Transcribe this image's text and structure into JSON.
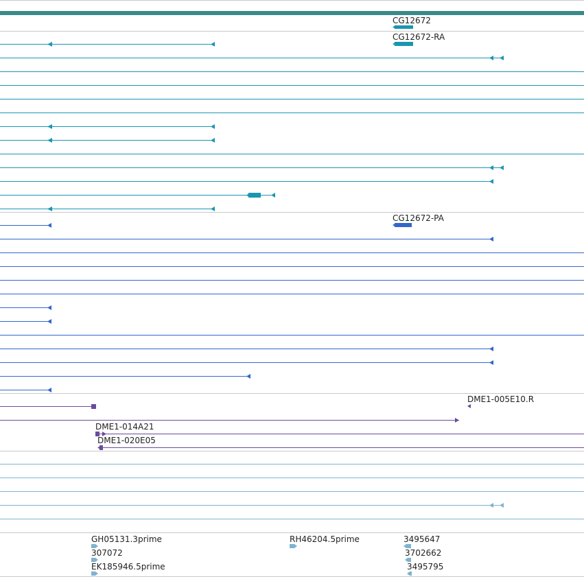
{
  "colors": {
    "separator": "#c8c8c8",
    "gene": "#3a8a8a",
    "transcript": "#1a96b2",
    "protein": "#3366cc",
    "clone": "#6a4c9c",
    "est": "#7fb3cf"
  },
  "genes": {
    "gene_name": "CG12672",
    "transcript_name": "CG12672-RA",
    "protein_name": "CG12672-PA"
  },
  "clones": {
    "clone_1": "DME1-005E10.R",
    "clone_2": "DME1-014A21",
    "clone_3": "DME1-020E05"
  },
  "ests": {
    "est_1": "GH05131.3prime",
    "est_2": "307072",
    "est_3": "EK185946.5prime",
    "est_4": "RH46204.5prime",
    "est_5": "3495647",
    "est_6": "3702662",
    "est_7": "3495795"
  }
}
